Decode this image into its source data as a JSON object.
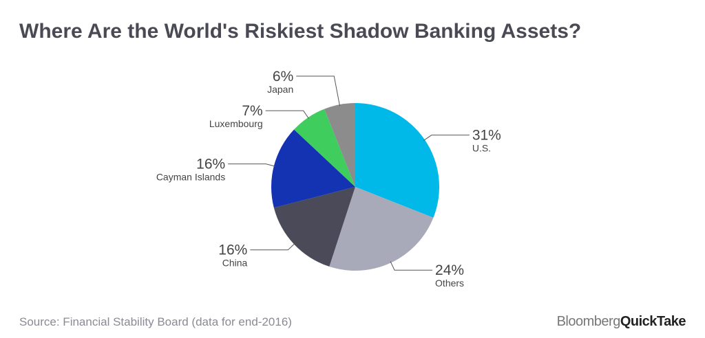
{
  "chart_data": {
    "type": "pie",
    "title": "Where Are the World's Riskiest Shadow Banking Assets?",
    "categories": [
      "U.S.",
      "Others",
      "China",
      "Cayman Islands",
      "Luxembourg",
      "Japan"
    ],
    "values": [
      31,
      24,
      16,
      16,
      7,
      6
    ],
    "value_labels": [
      "31%",
      "24%",
      "16%",
      "16%",
      "7%",
      "6%"
    ],
    "colors": [
      "#00b9e8",
      "#a9aab9",
      "#4a4a58",
      "#1333b3",
      "#3fce5e",
      "#8c8c8c"
    ],
    "source": "Source: Financial Stability Board (data for end-2016)"
  },
  "brand": {
    "name": "Bloomberg",
    "product": "QuickTake"
  }
}
